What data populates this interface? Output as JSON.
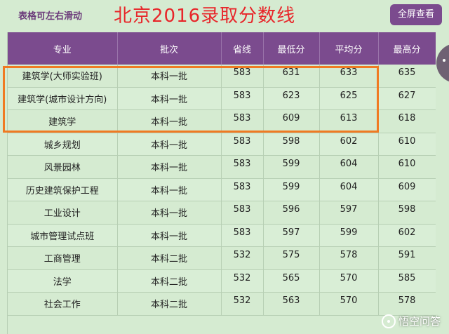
{
  "header": {
    "hint": "表格可左右滑动",
    "title": "北京2016录取分数线",
    "fullscreen_label": "全屏查看"
  },
  "table": {
    "columns": [
      "专业",
      "批次",
      "省线",
      "最低分",
      "平均分",
      "最高分"
    ],
    "rows": [
      [
        "建筑学(大师实验班)",
        "本科一批",
        "583",
        "631",
        "633",
        "635"
      ],
      [
        "建筑学(城市设计方向)",
        "本科一批",
        "583",
        "623",
        "625",
        "627"
      ],
      [
        "建筑学",
        "本科一批",
        "583",
        "609",
        "613",
        "618"
      ],
      [
        "城乡规划",
        "本科一批",
        "583",
        "598",
        "602",
        "610"
      ],
      [
        "风景园林",
        "本科一批",
        "583",
        "599",
        "604",
        "610"
      ],
      [
        "历史建筑保护工程",
        "本科一批",
        "583",
        "599",
        "604",
        "609"
      ],
      [
        "工业设计",
        "本科一批",
        "583",
        "596",
        "597",
        "598"
      ],
      [
        "城市管理试点班",
        "本科一批",
        "583",
        "597",
        "599",
        "602"
      ],
      [
        "工商管理",
        "本科二批",
        "532",
        "575",
        "578",
        "591"
      ],
      [
        "法学",
        "本科二批",
        "532",
        "565",
        "570",
        "585"
      ],
      [
        "社会工作",
        "本科二批",
        "532",
        "563",
        "570",
        "578"
      ]
    ]
  },
  "watermark": "悟空问答",
  "colors": {
    "header_bg": "#7b4b8e",
    "title": "#e8262a",
    "highlight": "#f07a22",
    "page_bg": "#d5ebd1"
  }
}
